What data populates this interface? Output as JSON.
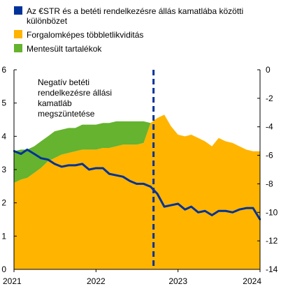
{
  "chart_data": {
    "type": "area",
    "title": "",
    "xlabel": "",
    "ylabel_left": "",
    "ylabel_right": "",
    "legend_placement": "top-left",
    "grid": false,
    "x_ticks": [
      "2021",
      "2022",
      "2023",
      "2024"
    ],
    "x_range": [
      "2021-01-01",
      "2024-01-01"
    ],
    "y_left": {
      "range": [
        0,
        6
      ],
      "ticks": [
        "0",
        "1",
        "2",
        "3",
        "4",
        "5",
        "6"
      ]
    },
    "y_right": {
      "range": [
        -14,
        0
      ],
      "ticks": [
        "0",
        "-2",
        "-4",
        "-6",
        "-8",
        "-10",
        "-12",
        "-14"
      ]
    },
    "colors": {
      "excess_liquidity": "#ffb400",
      "exempt_reserves": "#65b32e",
      "spread_line": "#003299",
      "vline": "#003299"
    },
    "series": [
      {
        "name": "Az €STR és a betéti rendelkezésre állás kamatlába közötti különbözet",
        "kind": "line",
        "axis": "right",
        "points": [
          [
            "2021-01-01",
            -5.7
          ],
          [
            "2021-02-01",
            -5.9
          ],
          [
            "2021-03-01",
            -5.6
          ],
          [
            "2021-04-01",
            -5.9
          ],
          [
            "2021-05-01",
            -6.2
          ],
          [
            "2021-06-01",
            -6.3
          ],
          [
            "2021-07-01",
            -6.6
          ],
          [
            "2021-08-01",
            -6.8
          ],
          [
            "2021-09-01",
            -6.7
          ],
          [
            "2021-10-01",
            -6.7
          ],
          [
            "2021-11-01",
            -6.6
          ],
          [
            "2021-12-01",
            -7.0
          ],
          [
            "2022-01-01",
            -6.9
          ],
          [
            "2022-02-01",
            -6.9
          ],
          [
            "2022-03-01",
            -7.3
          ],
          [
            "2022-04-01",
            -7.4
          ],
          [
            "2022-05-01",
            -7.5
          ],
          [
            "2022-06-01",
            -7.8
          ],
          [
            "2022-07-01",
            -8.0
          ],
          [
            "2022-08-01",
            -8.0
          ],
          [
            "2022-09-01",
            -8.2
          ],
          [
            "2022-10-01",
            -8.7
          ],
          [
            "2022-11-01",
            -9.6
          ],
          [
            "2022-12-01",
            -9.5
          ],
          [
            "2023-01-01",
            -9.4
          ],
          [
            "2023-02-01",
            -9.8
          ],
          [
            "2023-03-01",
            -9.6
          ],
          [
            "2023-04-01",
            -10.0
          ],
          [
            "2023-05-01",
            -9.9
          ],
          [
            "2023-06-01",
            -10.2
          ],
          [
            "2023-07-01",
            -9.9
          ],
          [
            "2023-08-01",
            -9.9
          ],
          [
            "2023-09-01",
            -10.0
          ],
          [
            "2023-10-01",
            -9.8
          ],
          [
            "2023-11-01",
            -9.7
          ],
          [
            "2023-12-01",
            -9.7
          ],
          [
            "2024-01-01",
            -10.5
          ]
        ]
      },
      {
        "name": "Forgalomképes többletlikviditás",
        "kind": "area",
        "axis": "left",
        "points": [
          [
            "2021-01-01",
            2.6
          ],
          [
            "2021-02-01",
            2.7
          ],
          [
            "2021-03-01",
            2.75
          ],
          [
            "2021-04-01",
            2.9
          ],
          [
            "2021-05-01",
            3.05
          ],
          [
            "2021-06-01",
            3.25
          ],
          [
            "2021-07-01",
            3.35
          ],
          [
            "2021-08-01",
            3.45
          ],
          [
            "2021-09-01",
            3.5
          ],
          [
            "2021-10-01",
            3.55
          ],
          [
            "2021-11-01",
            3.6
          ],
          [
            "2021-12-01",
            3.6
          ],
          [
            "2022-01-01",
            3.6
          ],
          [
            "2022-02-01",
            3.65
          ],
          [
            "2022-03-01",
            3.65
          ],
          [
            "2022-04-01",
            3.7
          ],
          [
            "2022-05-01",
            3.75
          ],
          [
            "2022-06-01",
            3.75
          ],
          [
            "2022-07-01",
            3.75
          ],
          [
            "2022-08-01",
            3.8
          ],
          [
            "2022-09-01",
            4.4
          ],
          [
            "2022-10-01",
            4.55
          ],
          [
            "2022-11-01",
            4.65
          ],
          [
            "2022-12-01",
            4.3
          ],
          [
            "2023-01-01",
            4.05
          ],
          [
            "2023-02-01",
            4.0
          ],
          [
            "2023-03-01",
            4.05
          ],
          [
            "2023-04-01",
            3.95
          ],
          [
            "2023-05-01",
            3.85
          ],
          [
            "2023-06-01",
            3.7
          ],
          [
            "2023-07-01",
            3.95
          ],
          [
            "2023-08-01",
            3.85
          ],
          [
            "2023-09-01",
            3.8
          ],
          [
            "2023-10-01",
            3.7
          ],
          [
            "2023-11-01",
            3.6
          ],
          [
            "2023-12-01",
            3.55
          ],
          [
            "2024-01-01",
            3.55
          ]
        ]
      },
      {
        "name": "Mentesült tartalékok",
        "kind": "stacked_area",
        "axis": "left",
        "stacked_on": "Forgalomképes többletlikviditás",
        "points": [
          [
            "2021-01-01",
            0.95
          ],
          [
            "2021-02-01",
            0.9
          ],
          [
            "2021-03-01",
            0.85
          ],
          [
            "2021-04-01",
            0.8
          ],
          [
            "2021-05-01",
            0.8
          ],
          [
            "2021-06-01",
            0.75
          ],
          [
            "2021-07-01",
            0.8
          ],
          [
            "2021-08-01",
            0.75
          ],
          [
            "2021-09-01",
            0.75
          ],
          [
            "2021-10-01",
            0.7
          ],
          [
            "2021-11-01",
            0.75
          ],
          [
            "2021-12-01",
            0.75
          ],
          [
            "2022-01-01",
            0.75
          ],
          [
            "2022-02-01",
            0.75
          ],
          [
            "2022-03-01",
            0.75
          ],
          [
            "2022-04-01",
            0.75
          ],
          [
            "2022-05-01",
            0.7
          ],
          [
            "2022-06-01",
            0.7
          ],
          [
            "2022-07-01",
            0.7
          ],
          [
            "2022-08-01",
            0.65
          ],
          [
            "2022-09-01",
            0
          ],
          [
            "2022-10-01",
            0
          ],
          [
            "2022-11-01",
            0
          ],
          [
            "2022-12-01",
            0
          ],
          [
            "2023-01-01",
            0
          ],
          [
            "2023-02-01",
            0
          ],
          [
            "2023-03-01",
            0
          ],
          [
            "2023-04-01",
            0
          ],
          [
            "2023-05-01",
            0
          ],
          [
            "2023-06-01",
            0
          ],
          [
            "2023-07-01",
            0
          ],
          [
            "2023-08-01",
            0
          ],
          [
            "2023-09-01",
            0
          ],
          [
            "2023-10-01",
            0
          ],
          [
            "2023-11-01",
            0
          ],
          [
            "2023-12-01",
            0
          ],
          [
            "2024-01-01",
            0
          ]
        ]
      }
    ],
    "vertical_marker": {
      "date": "2022-09-14",
      "style": "dashed"
    },
    "annotation_lines": [
      "Negatív betéti",
      "rendelkezésre állási",
      "kamatláb",
      "megszüntetése"
    ]
  }
}
